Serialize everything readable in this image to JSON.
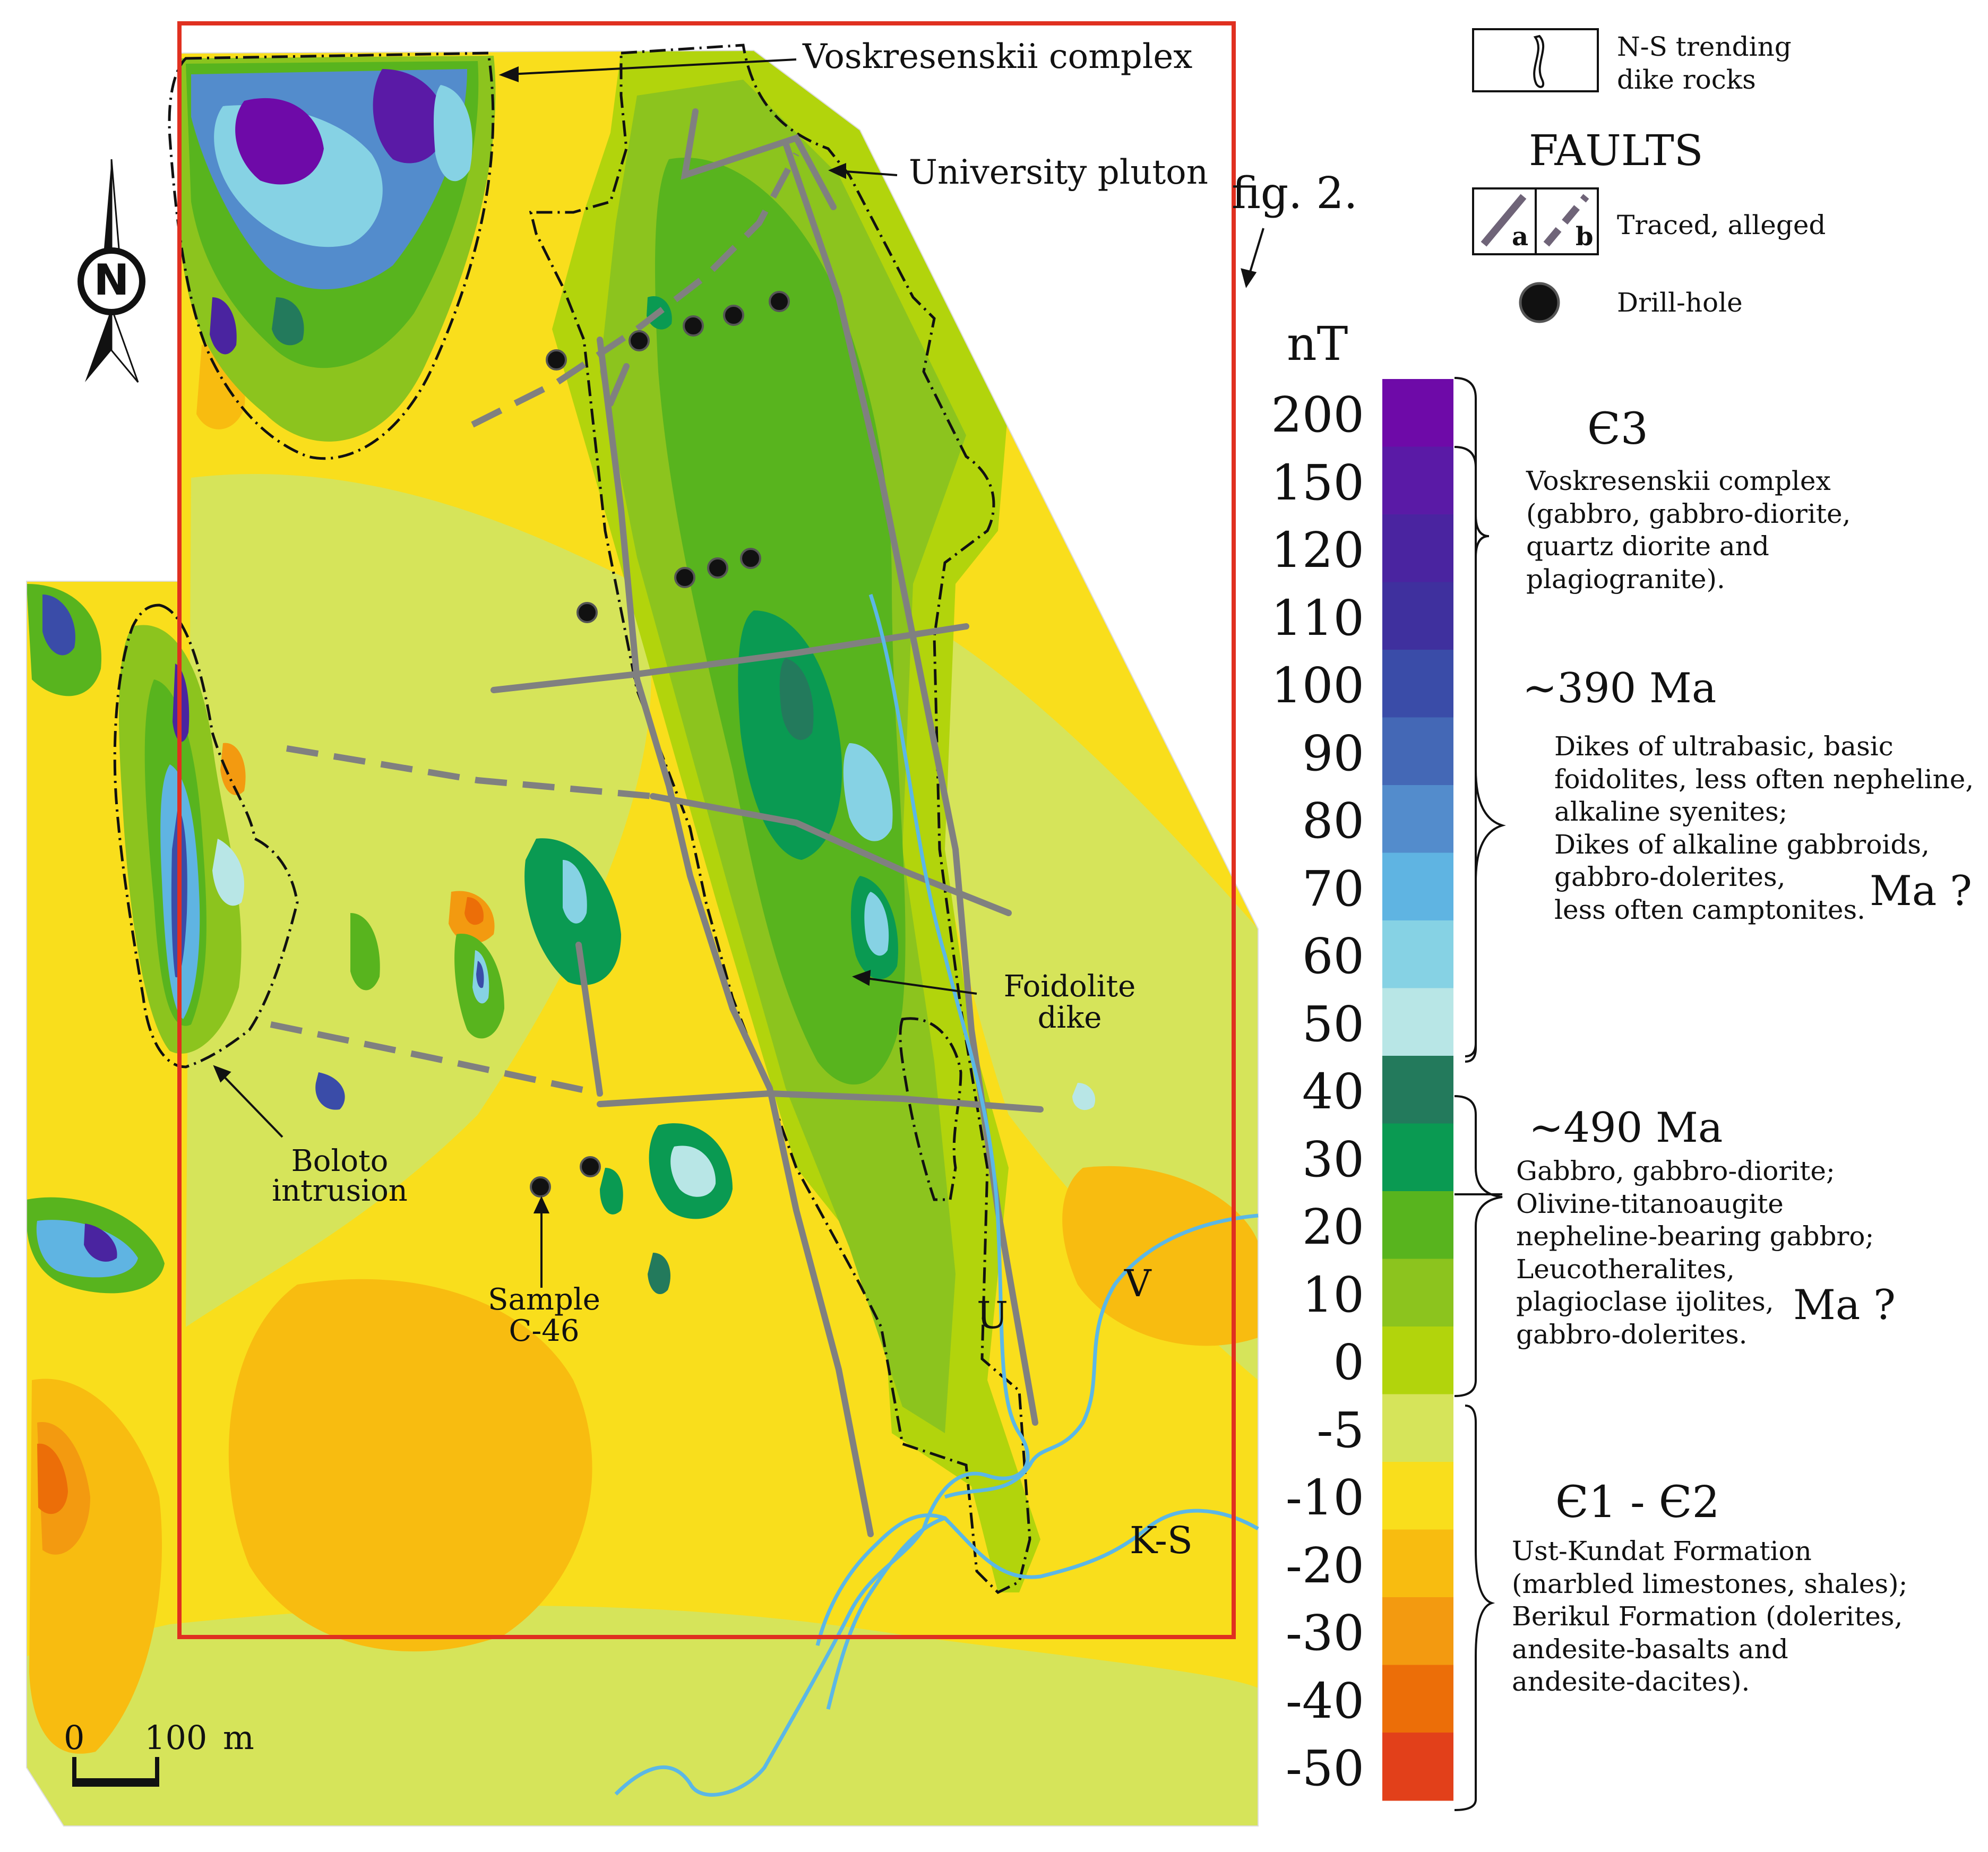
{
  "map_labels": {
    "voskresenskii": "Voskresenskii complex",
    "university": "University pluton",
    "fig": "fig. 2.",
    "foidolite": "Foidolite\ndike",
    "boloto": "Boloto\nintrusion",
    "sample": "Sample\nC-46",
    "river_v": "V",
    "river_u": "U",
    "river_ks": "K-S",
    "north": "N"
  },
  "scale_bar": {
    "zero": "0",
    "length": "100",
    "unit": "m"
  },
  "legend": {
    "dike_symbol_label": "N-S trending\ndike rocks",
    "faults_title": "FAULTS",
    "fault_a": "a",
    "fault_b": "b",
    "faults_label": "Traced, alleged",
    "drillhole_label": "Drill-hole"
  },
  "color_scale": {
    "unit": "nT",
    "classes": [
      {
        "value": "200",
        "color": "#6E0AA8"
      },
      {
        "value": "150",
        "color": "#5A1AA6"
      },
      {
        "value": "120",
        "color": "#4A24A0"
      },
      {
        "value": "110",
        "color": "#3F309E"
      },
      {
        "value": "100",
        "color": "#3A4CA8"
      },
      {
        "value": "90",
        "color": "#4468B6"
      },
      {
        "value": "80",
        "color": "#538CCC"
      },
      {
        "value": "70",
        "color": "#5FB4E2"
      },
      {
        "value": "60",
        "color": "#86D2E4"
      },
      {
        "value": "50",
        "color": "#B8E6E6"
      },
      {
        "value": "40",
        "color": "#237A5C"
      },
      {
        "value": "30",
        "color": "#0A9A52"
      },
      {
        "value": "20",
        "color": "#58B41E"
      },
      {
        "value": "10",
        "color": "#8CC41E"
      },
      {
        "value": "0",
        "color": "#B2D40C"
      },
      {
        "value": "-5",
        "color": "#D6E45A"
      },
      {
        "value": "-10",
        "color": "#F9DE1C"
      },
      {
        "value": "-20",
        "color": "#F8BC10"
      },
      {
        "value": "-30",
        "color": "#F39A10"
      },
      {
        "value": "-40",
        "color": "#EC6E08"
      },
      {
        "value": "-50",
        "color": "#E2401A"
      }
    ]
  },
  "units": {
    "voskresenskii": {
      "age_symbol": "Є3",
      "text": "Voskresenskii complex\n(gabbro, gabbro-diorite,\nquartz diorite and\nplagiogranite)."
    },
    "dikes_390": {
      "age": "~390 Ma",
      "text": "Dikes of ultrabasic, basic\nfoidolites, less often nepheline,\nalkaline syenites;\nDikes of alkaline gabbroids,\ngabbro-dolerites,\nless often camptonites.",
      "ma_q": "Ma ?"
    },
    "gabbro_490": {
      "age": "~490 Ma",
      "text": "Gabbro, gabbro-diorite;\nOlivine-titanoaugite\nnepheline-bearing gabbro;\nLeucotheralites,\nplagioclase ijolites,\ngabbro-dolerites.",
      "ma_q": "Ma ?"
    },
    "formations": {
      "age_symbol": "Є1 - Є2",
      "text": "Ust-Kundat Formation\n(marbled limestones, shales);\nBerikul Formation (dolerites,\nandesite-basalts and\nandesite-dacites)."
    }
  },
  "colors": {
    "frame": "#E03020",
    "fault": "#808080",
    "river": "#5BB7E6",
    "contour": "#111111"
  }
}
